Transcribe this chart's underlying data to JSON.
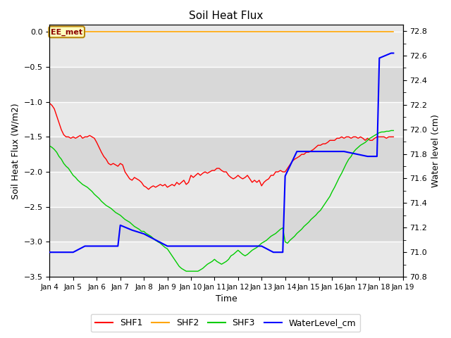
{
  "title": "Soil Heat Flux",
  "xlabel": "Time",
  "ylabel_left": "Soil Heat Flux (W/m2)",
  "ylabel_right": "Water level (cm)",
  "ylim_left": [
    -3.5,
    0.1
  ],
  "ylim_right": [
    70.8,
    72.85
  ],
  "background_color": "#ffffff",
  "plot_bg_color": "#e8e8e8",
  "plot_bg_stripe_light": "#f0f0f0",
  "plot_bg_stripe_dark": "#dcdcdc",
  "annotation_label": "EE_met",
  "annotation_color": "#8B0000",
  "annotation_bg": "#ffffc0",
  "annotation_border": "#b8860b",
  "shf2_value": 0.0,
  "shf2_color": "#FFA500",
  "shf1_color": "#FF0000",
  "shf3_color": "#00CC00",
  "water_color": "#0000FF",
  "x_tick_labels": [
    "Jan 4",
    "Jan 5",
    "Jan 6",
    "Jan 7",
    "Jan 8",
    "Jan 9",
    "Jan 10",
    "Jan 11",
    "Jan 12",
    "Jan 13",
    "Jan 14",
    "Jan 15",
    "Jan 16",
    "Jan 17",
    "Jan 18",
    "Jan 19"
  ],
  "shf1_x": [
    4.0,
    4.1,
    4.2,
    4.3,
    4.4,
    4.5,
    4.6,
    4.7,
    4.8,
    4.9,
    5.0,
    5.1,
    5.2,
    5.3,
    5.4,
    5.5,
    5.6,
    5.7,
    5.8,
    5.9,
    6.0,
    6.1,
    6.2,
    6.3,
    6.4,
    6.5,
    6.6,
    6.7,
    6.8,
    6.9,
    7.0,
    7.1,
    7.2,
    7.3,
    7.4,
    7.5,
    7.6,
    7.7,
    7.8,
    7.9,
    8.0,
    8.1,
    8.2,
    8.3,
    8.4,
    8.5,
    8.6,
    8.7,
    8.8,
    8.9,
    9.0,
    9.1,
    9.2,
    9.3,
    9.4,
    9.5,
    9.6,
    9.7,
    9.8,
    9.9,
    10.0,
    10.1,
    10.2,
    10.3,
    10.4,
    10.5,
    10.6,
    10.7,
    10.8,
    10.9,
    11.0,
    11.1,
    11.2,
    11.3,
    11.4,
    11.5,
    11.6,
    11.7,
    11.8,
    11.9,
    12.0,
    12.1,
    12.2,
    12.3,
    12.4,
    12.5,
    12.6,
    12.7,
    12.8,
    12.9,
    13.0,
    13.1,
    13.2,
    13.3,
    13.4,
    13.5,
    13.6,
    13.7,
    13.8,
    13.9,
    14.0,
    14.1,
    14.2,
    14.3,
    14.4,
    14.5,
    14.6,
    14.7,
    14.8,
    14.9,
    15.0,
    15.1,
    15.2,
    15.3,
    15.4,
    15.5,
    15.6,
    15.7,
    15.8,
    15.9,
    16.0,
    16.1,
    16.2,
    16.3,
    16.4,
    16.5,
    16.6,
    16.7,
    16.8,
    16.9,
    17.0,
    17.1,
    17.2,
    17.3,
    17.4,
    17.5,
    17.6,
    17.7,
    17.8,
    17.9,
    18.0,
    18.1,
    18.2,
    18.3,
    18.4,
    18.5,
    18.6
  ],
  "shf1_y": [
    -1.02,
    -1.05,
    -1.1,
    -1.2,
    -1.3,
    -1.4,
    -1.47,
    -1.5,
    -1.5,
    -1.52,
    -1.5,
    -1.52,
    -1.5,
    -1.48,
    -1.52,
    -1.5,
    -1.5,
    -1.48,
    -1.5,
    -1.52,
    -1.58,
    -1.65,
    -1.72,
    -1.78,
    -1.82,
    -1.88,
    -1.9,
    -1.88,
    -1.9,
    -1.92,
    -1.88,
    -1.9,
    -2.0,
    -2.05,
    -2.1,
    -2.12,
    -2.08,
    -2.1,
    -2.12,
    -2.15,
    -2.2,
    -2.22,
    -2.25,
    -2.22,
    -2.2,
    -2.22,
    -2.2,
    -2.18,
    -2.2,
    -2.18,
    -2.22,
    -2.2,
    -2.18,
    -2.2,
    -2.15,
    -2.18,
    -2.15,
    -2.12,
    -2.18,
    -2.15,
    -2.05,
    -2.08,
    -2.05,
    -2.02,
    -2.05,
    -2.02,
    -2.0,
    -2.02,
    -2.0,
    -1.98,
    -1.98,
    -1.95,
    -1.95,
    -1.98,
    -2.0,
    -2.0,
    -2.05,
    -2.08,
    -2.1,
    -2.08,
    -2.05,
    -2.08,
    -2.1,
    -2.08,
    -2.05,
    -2.1,
    -2.15,
    -2.12,
    -2.15,
    -2.12,
    -2.2,
    -2.15,
    -2.12,
    -2.1,
    -2.05,
    -2.05,
    -2.0,
    -2.0,
    -1.98,
    -2.0,
    -2.0,
    -1.95,
    -1.9,
    -1.85,
    -1.82,
    -1.8,
    -1.78,
    -1.75,
    -1.75,
    -1.72,
    -1.72,
    -1.7,
    -1.68,
    -1.65,
    -1.62,
    -1.62,
    -1.6,
    -1.6,
    -1.58,
    -1.55,
    -1.55,
    -1.55,
    -1.52,
    -1.52,
    -1.5,
    -1.52,
    -1.5,
    -1.5,
    -1.52,
    -1.5,
    -1.5,
    -1.52,
    -1.5,
    -1.52,
    -1.55,
    -1.52,
    -1.55,
    -1.55,
    -1.52,
    -1.5,
    -1.5,
    -1.5,
    -1.5,
    -1.52,
    -1.5,
    -1.5,
    -1.5
  ],
  "shf3_x": [
    4.0,
    4.1,
    4.2,
    4.3,
    4.4,
    4.5,
    4.6,
    4.7,
    4.8,
    4.9,
    5.0,
    5.1,
    5.2,
    5.3,
    5.4,
    5.5,
    5.6,
    5.7,
    5.8,
    5.9,
    6.0,
    6.1,
    6.2,
    6.3,
    6.4,
    6.5,
    6.6,
    6.7,
    6.8,
    6.9,
    7.0,
    7.1,
    7.2,
    7.3,
    7.4,
    7.5,
    7.6,
    7.7,
    7.8,
    7.9,
    8.0,
    8.1,
    8.2,
    8.3,
    8.4,
    8.5,
    8.6,
    8.7,
    8.8,
    8.9,
    9.0,
    9.1,
    9.2,
    9.3,
    9.4,
    9.5,
    9.6,
    9.7,
    9.8,
    9.9,
    10.0,
    10.1,
    10.2,
    10.3,
    10.4,
    10.5,
    10.6,
    10.7,
    10.8,
    10.9,
    11.0,
    11.1,
    11.2,
    11.3,
    11.4,
    11.5,
    11.6,
    11.7,
    11.8,
    11.9,
    12.0,
    12.1,
    12.2,
    12.3,
    12.4,
    12.5,
    12.6,
    12.7,
    12.8,
    12.9,
    13.0,
    13.1,
    13.2,
    13.3,
    13.4,
    13.5,
    13.6,
    13.7,
    13.8,
    13.9,
    14.0,
    14.1,
    14.2,
    14.3,
    14.4,
    14.5,
    14.6,
    14.7,
    14.8,
    14.9,
    15.0,
    15.1,
    15.2,
    15.3,
    15.4,
    15.5,
    15.6,
    15.7,
    15.8,
    15.9,
    16.0,
    16.1,
    16.2,
    16.3,
    16.4,
    16.5,
    16.6,
    16.7,
    16.8,
    16.9,
    17.0,
    17.1,
    17.2,
    17.3,
    17.4,
    17.5,
    17.6,
    17.7,
    17.8,
    17.9,
    18.0,
    18.1,
    18.2,
    18.3,
    18.4,
    18.5,
    18.6
  ],
  "shf3_y": [
    -1.63,
    -1.65,
    -1.68,
    -1.72,
    -1.78,
    -1.82,
    -1.88,
    -1.92,
    -1.95,
    -2.0,
    -2.05,
    -2.08,
    -2.12,
    -2.15,
    -2.18,
    -2.2,
    -2.22,
    -2.25,
    -2.28,
    -2.32,
    -2.35,
    -2.38,
    -2.42,
    -2.45,
    -2.48,
    -2.5,
    -2.52,
    -2.55,
    -2.58,
    -2.6,
    -2.62,
    -2.65,
    -2.68,
    -2.7,
    -2.72,
    -2.75,
    -2.78,
    -2.8,
    -2.82,
    -2.85,
    -2.85,
    -2.88,
    -2.9,
    -2.92,
    -2.95,
    -2.98,
    -3.0,
    -3.02,
    -3.05,
    -3.08,
    -3.1,
    -3.15,
    -3.2,
    -3.25,
    -3.3,
    -3.35,
    -3.38,
    -3.4,
    -3.42,
    -3.42,
    -3.42,
    -3.42,
    -3.42,
    -3.42,
    -3.4,
    -3.38,
    -3.35,
    -3.32,
    -3.3,
    -3.28,
    -3.25,
    -3.28,
    -3.3,
    -3.32,
    -3.3,
    -3.28,
    -3.25,
    -3.2,
    -3.18,
    -3.15,
    -3.12,
    -3.15,
    -3.18,
    -3.2,
    -3.18,
    -3.15,
    -3.12,
    -3.1,
    -3.08,
    -3.05,
    -3.02,
    -3.0,
    -2.98,
    -2.95,
    -2.92,
    -2.9,
    -2.88,
    -2.85,
    -2.82,
    -2.8,
    -3.0,
    -3.02,
    -2.98,
    -2.95,
    -2.92,
    -2.88,
    -2.85,
    -2.82,
    -2.78,
    -2.75,
    -2.72,
    -2.68,
    -2.65,
    -2.62,
    -2.58,
    -2.55,
    -2.5,
    -2.45,
    -2.4,
    -2.35,
    -2.28,
    -2.22,
    -2.15,
    -2.08,
    -2.02,
    -1.95,
    -1.88,
    -1.82,
    -1.78,
    -1.72,
    -1.68,
    -1.65,
    -1.62,
    -1.6,
    -1.58,
    -1.55,
    -1.52,
    -1.5,
    -1.48,
    -1.46,
    -1.44,
    -1.43,
    -1.43,
    -1.42,
    -1.42,
    -1.41,
    -1.41
  ],
  "water_x": [
    4.0,
    4.5,
    5.0,
    5.5,
    6.0,
    6.5,
    6.9,
    7.0,
    7.0,
    7.5,
    8.0,
    8.0,
    8.5,
    9.0,
    9.0,
    9.5,
    10.0,
    10.5,
    11.0,
    11.5,
    12.0,
    12.5,
    13.0,
    13.5,
    13.9,
    14.0,
    14.0,
    14.5,
    15.0,
    15.5,
    16.0,
    16.5,
    17.0,
    17.5,
    17.9,
    18.0,
    18.0,
    18.5,
    18.6
  ],
  "water_y": [
    71.0,
    71.0,
    71.0,
    71.05,
    71.05,
    71.05,
    71.05,
    71.22,
    71.22,
    71.18,
    71.15,
    71.15,
    71.1,
    71.05,
    71.05,
    71.05,
    71.05,
    71.05,
    71.05,
    71.05,
    71.05,
    71.05,
    71.05,
    71.0,
    71.0,
    71.62,
    71.62,
    71.82,
    71.82,
    71.82,
    71.82,
    71.82,
    71.8,
    71.78,
    71.78,
    72.58,
    72.58,
    72.62,
    72.62
  ]
}
